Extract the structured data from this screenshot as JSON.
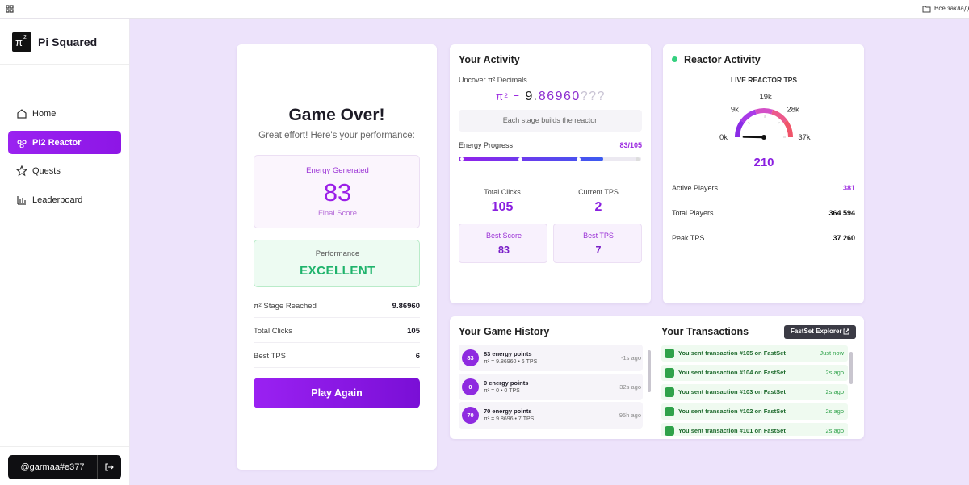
{
  "browser": {
    "bookmarks": "Все закладки"
  },
  "sidebar": {
    "logo": "π",
    "logo_sup": "2",
    "brand": "Pi Squared",
    "nav": [
      "Home",
      "PI2 Reactor",
      "Quests",
      "Leaderboard"
    ],
    "active": 1,
    "user": "@garmaa#e377"
  },
  "game_over": {
    "title": "Game Over!",
    "subtitle": "Great effort! Here's your performance:",
    "energy_label": "Energy Generated",
    "energy_value": 83,
    "energy_caption": "Final Score",
    "performance_label": "Performance",
    "performance_value": "EXCELLENT",
    "rows": [
      [
        "π² Stage Reached",
        "9.86960"
      ],
      [
        "Total Clicks",
        "105"
      ],
      [
        "Best TPS",
        "6"
      ]
    ],
    "button": "Play Again"
  },
  "activity": {
    "title": "Your Activity",
    "uncover": "Uncover π² Decimals",
    "pi_prefix": "π² =",
    "pi_int": "9",
    "pi_dot": ".",
    "pi_digits": "86960",
    "pi_hidden": "???",
    "note": "Each stage builds the reactor",
    "progress_label": "Energy Progress",
    "progress": {
      "current": 83,
      "separator": "/",
      "total": 105
    },
    "stats": [
      {
        "label": "Total Clicks",
        "value": 105
      },
      {
        "label": "Current TPS",
        "value": 2
      }
    ],
    "bests": [
      {
        "label": "Best Score",
        "value": 83
      },
      {
        "label": "Best TPS",
        "value": 7
      }
    ]
  },
  "reactor": {
    "title": "Reactor Activity",
    "gauge_label": "LIVE REACTOR TPS",
    "gauge": {
      "range": [
        0,
        37000
      ],
      "ticks": [
        {
          "value": 0,
          "label": "0k"
        },
        {
          "value": 9000,
          "label": "9k"
        },
        {
          "value": 19000,
          "label": "19k"
        },
        {
          "value": 28000,
          "label": "28k"
        },
        {
          "value": 37000,
          "label": "37k"
        }
      ],
      "value": 210
    },
    "rows": [
      [
        "Active Players",
        "381"
      ],
      [
        "Total Players",
        "364 594"
      ],
      [
        "Peak TPS",
        "37 260"
      ]
    ]
  },
  "history": {
    "title": "Your Game History",
    "items": [
      {
        "badge": "83",
        "title": "83 energy points",
        "detail": "π² = 9.86960 • 6 TPS",
        "time": "-1s ago"
      },
      {
        "badge": "0",
        "title": "0 energy points",
        "detail": "π² = 0 • 0 TPS",
        "time": "32s ago"
      },
      {
        "badge": "70",
        "title": "70 energy points",
        "detail": "π² = 9.8696 • 7 TPS",
        "time": "95h ago"
      }
    ]
  },
  "transactions": {
    "title": "Your Transactions",
    "button": "FastSet Explorer",
    "items": [
      {
        "text": "You sent transaction #105 on FastSet",
        "time": "Just now"
      },
      {
        "text": "You sent transaction #104 on FastSet",
        "time": "2s ago"
      },
      {
        "text": "You sent transaction #103 on FastSet",
        "time": "2s ago"
      },
      {
        "text": "You sent transaction #102 on FastSet",
        "time": "2s ago"
      },
      {
        "text": "You sent transaction #101 on FastSet",
        "time": "2s ago"
      }
    ]
  }
}
